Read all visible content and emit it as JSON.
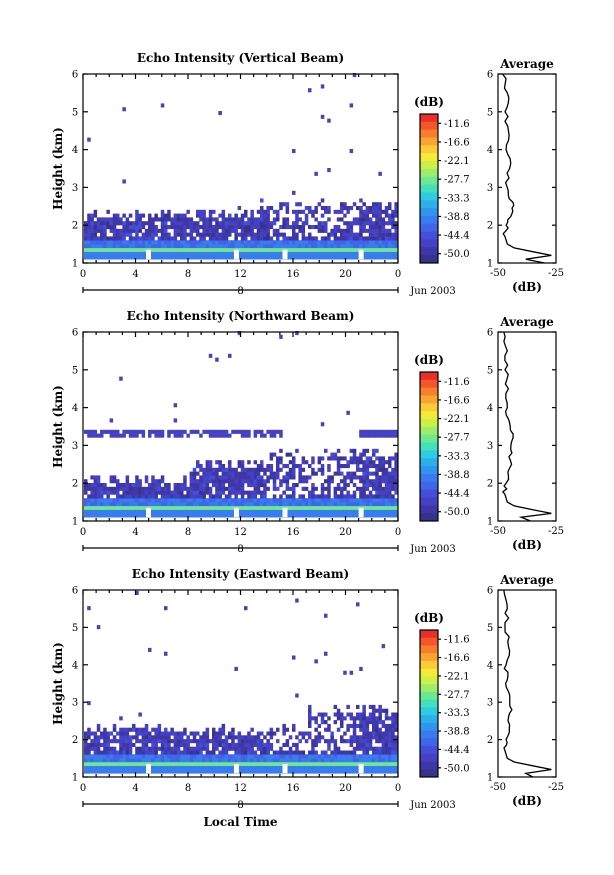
{
  "figure": {
    "ylabel": "Height (km)",
    "xlabel": "Local Time",
    "day_label": "8",
    "month_label": "Jun 2003",
    "colorbar_title": "(dB)",
    "colorbar_ticks": [
      "-11.6",
      "-16.6",
      "-22.1",
      "-27.7",
      "-33.3",
      "-38.8",
      "-44.4",
      "-50.0"
    ],
    "colorbar_colors": [
      "#e8302a",
      "#f4562a",
      "#f77e2c",
      "#faa431",
      "#fccb35",
      "#f4ea3a",
      "#cdef4a",
      "#9ded6a",
      "#6ee890",
      "#44e0bb",
      "#2fcbe0",
      "#2db0ea",
      "#3195ef",
      "#387cf0",
      "#3e65ea",
      "#434fd9",
      "#4541c2",
      "#3f37a7",
      "#37328b"
    ],
    "avg_title": "Average",
    "avg_xlabel": "(dB)",
    "avg_xticks": [
      "-50",
      "-25"
    ],
    "x_ticks": [
      "0",
      "4",
      "8",
      "12",
      "16",
      "20",
      "0"
    ],
    "y_ticks": [
      "1",
      "2",
      "3",
      "4",
      "5",
      "6"
    ]
  },
  "chart_data": [
    {
      "type": "heatmap",
      "title": "Echo Intensity (Vertical Beam)",
      "x_range_hours": [
        0,
        24
      ],
      "ylim_km": [
        1,
        6
      ],
      "zlim_dB": [
        -50.0,
        -11.6
      ],
      "description_layers": [
        {
          "height_km": [
            1.1,
            1.35
          ],
          "dB": -27.7
        },
        {
          "height_km": [
            1.35,
            1.6
          ],
          "dB": -38.8
        },
        {
          "height_km": [
            1.6,
            2.3
          ],
          "dB": -44.4
        }
      ],
      "average_profile": {
        "xlim_dB": [
          -50,
          -25
        ],
        "height_km": [
          1.0,
          1.1,
          1.2,
          1.3,
          1.4,
          1.5,
          1.7,
          2.0,
          2.3,
          2.6,
          3.0,
          3.5,
          4.0,
          4.5,
          5.0,
          5.5,
          6.0
        ],
        "dB": [
          -30,
          -38,
          -27,
          -35,
          -43,
          -46,
          -47,
          -46.5,
          -44,
          -43.5,
          -46,
          -45,
          -46.5,
          -45.5,
          -47,
          -46,
          -48
        ]
      }
    },
    {
      "type": "heatmap",
      "title": "Echo Intensity (Northward Beam)",
      "x_range_hours": [
        0,
        24
      ],
      "ylim_km": [
        1,
        6
      ],
      "zlim_dB": [
        -50.0,
        -11.6
      ],
      "description_layers": [
        {
          "height_km": [
            1.1,
            1.35
          ],
          "dB": -27.7
        },
        {
          "height_km": [
            1.35,
            1.6
          ],
          "dB": -38.8
        },
        {
          "height_km": [
            1.6,
            2.6
          ],
          "dB": -44.4
        },
        {
          "height_km": [
            3.2,
            3.4
          ],
          "dB": -44.4
        }
      ],
      "average_profile": {
        "xlim_dB": [
          -50,
          -25
        ],
        "height_km": [
          1.0,
          1.1,
          1.2,
          1.3,
          1.4,
          1.5,
          1.7,
          2.0,
          2.4,
          2.8,
          3.2,
          3.6,
          4.0,
          4.5,
          5.0,
          5.5,
          6.0
        ],
        "dB": [
          -36,
          -40,
          -27,
          -35,
          -43,
          -46,
          -47,
          -46.5,
          -45,
          -44,
          -43.5,
          -45,
          -46,
          -45.5,
          -47,
          -46,
          -47.5
        ]
      }
    },
    {
      "type": "heatmap",
      "title": "Echo Intensity (Eastward Beam)",
      "x_range_hours": [
        0,
        24
      ],
      "ylim_km": [
        1,
        6
      ],
      "zlim_dB": [
        -50.0,
        -11.6
      ],
      "description_layers": [
        {
          "height_km": [
            1.1,
            1.35
          ],
          "dB": -27.7
        },
        {
          "height_km": [
            1.35,
            1.6
          ],
          "dB": -38.8
        },
        {
          "height_km": [
            1.6,
            2.5
          ],
          "dB": -44.4
        }
      ],
      "average_profile": {
        "xlim_dB": [
          -50,
          -25
        ],
        "height_km": [
          1.0,
          1.1,
          1.2,
          1.3,
          1.4,
          1.5,
          1.7,
          2.0,
          2.4,
          2.8,
          3.2,
          3.6,
          4.0,
          4.5,
          5.0,
          5.5,
          6.0
        ],
        "dB": [
          -35,
          -38,
          -27,
          -35,
          -43,
          -46,
          -47,
          -46.5,
          -45,
          -44,
          -45,
          -46,
          -46.5,
          -45.5,
          -47,
          -46,
          -47.5
        ]
      }
    }
  ]
}
